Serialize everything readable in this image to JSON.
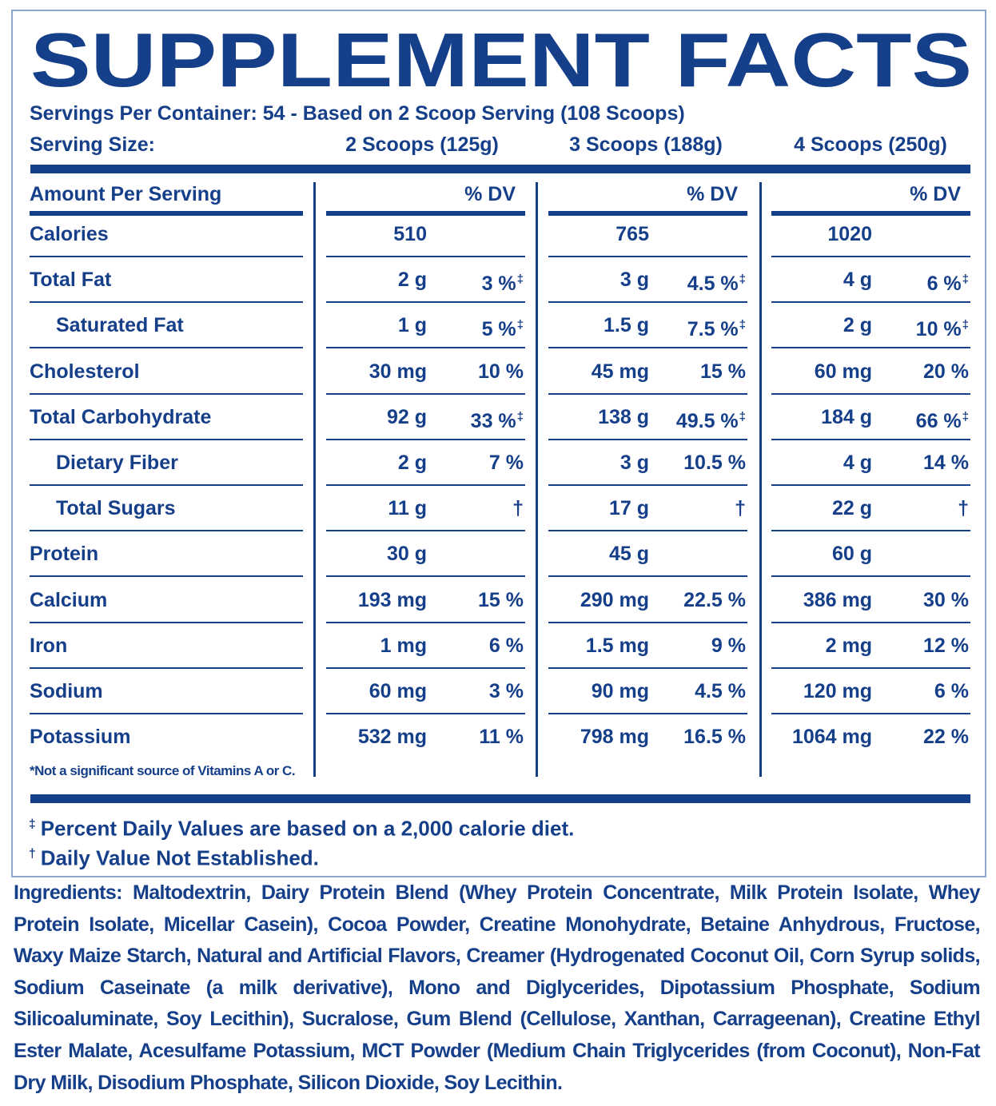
{
  "title": "SUPPLEMENT FACTS",
  "servings_per_container": "Servings Per Container: 54 - Based on 2 Scoop Serving (108 Scoops)",
  "serving_size": {
    "label": "Serving Size:",
    "columns": [
      "2 Scoops (125g)",
      "3 Scoops (188g)",
      "4 Scoops (250g)"
    ]
  },
  "header": {
    "label": "Amount Per Serving",
    "dv": [
      "% DV",
      "% DV",
      "% DV"
    ]
  },
  "rows": [
    {
      "name": "Calories",
      "amounts": [
        "510",
        "765",
        "1020"
      ]
    },
    {
      "name": "Total Fat",
      "amounts": [
        "2 g",
        "3 g",
        "4 g"
      ],
      "dv": [
        "3 %",
        "4.5 %",
        "6 %"
      ],
      "dv_note": "‡"
    },
    {
      "name": "Saturated Fat",
      "indent": true,
      "amounts": [
        "1 g",
        "1.5 g",
        "2 g"
      ],
      "dv": [
        "5 %",
        "7.5 %",
        "10 %"
      ],
      "dv_note": "‡"
    },
    {
      "name": "Cholesterol",
      "amounts": [
        "30 mg",
        "45 mg",
        "60 mg"
      ],
      "dv": [
        "10 %",
        "15 %",
        "20 %"
      ]
    },
    {
      "name": "Total Carbohydrate",
      "amounts": [
        "92 g",
        "138 g",
        "184 g"
      ],
      "dv": [
        "33 %",
        "49.5 %",
        "66 %"
      ],
      "dv_note": "‡"
    },
    {
      "name": "Dietary Fiber",
      "indent": true,
      "amounts": [
        "2 g",
        "3 g",
        "4 g"
      ],
      "dv": [
        "7 %",
        "10.5 %",
        "14 %"
      ]
    },
    {
      "name": "Total Sugars",
      "indent": true,
      "amounts": [
        "11 g",
        "17 g",
        "22 g"
      ],
      "dv": [
        "†",
        "†",
        "†"
      ]
    },
    {
      "name": "Protein",
      "amounts": [
        "30 g",
        "45 g",
        "60 g"
      ]
    },
    {
      "name": "Calcium",
      "amounts": [
        "193 mg",
        "290 mg",
        "386 mg"
      ],
      "dv": [
        "15 %",
        "22.5 %",
        "30 %"
      ]
    },
    {
      "name": "Iron",
      "amounts": [
        "1 mg",
        "1.5 mg",
        "2 mg"
      ],
      "dv": [
        "6 %",
        "9 %",
        "12 %"
      ]
    },
    {
      "name": "Sodium",
      "amounts": [
        "60 mg",
        "90 mg",
        "120 mg"
      ],
      "dv": [
        "3 %",
        "4.5 %",
        "6 %"
      ]
    },
    {
      "name": "Potassium",
      "amounts": [
        "532 mg",
        "798 mg",
        "1064 mg"
      ],
      "dv": [
        "11 %",
        "16.5 %",
        "22 %"
      ]
    }
  ],
  "vitamin_note": "*Not a significant source of Vitamins A or C.",
  "footnotes": [
    {
      "symbol": "‡",
      "text": "Percent Daily Values are based on a 2,000 calorie diet."
    },
    {
      "symbol": "†",
      "text": "Daily Value Not Established."
    }
  ],
  "ingredients": {
    "label": "Ingredients:",
    "text": "Maltodextrin, Dairy Protein Blend (Whey Protein Concentrate, Milk Protein Isolate, Whey Protein Isolate, Micellar Casein), Cocoa Powder, Creatine Monohydrate, Betaine Anhydrous, Fructose, Waxy Maize Starch, Natural and Artificial Flavors, Creamer (Hydrogenated Coconut Oil, Corn Syrup solids, Sodium Caseinate (a milk derivative), Mono and Diglycerides, Dipotassium Phosphate, Sodium Silicoaluminate, Soy Lecithin), Sucralose, Gum Blend (Cellulose, Xanthan, Carrageenan), Creatine Ethyl Ester Malate, Acesulfame Potassium, MCT Powder (Medium Chain Triglycerides (from Coconut), Non-Fat Dry Milk, Disodium Phosphate, Silicon Dioxide, Soy Lecithin."
  }
}
